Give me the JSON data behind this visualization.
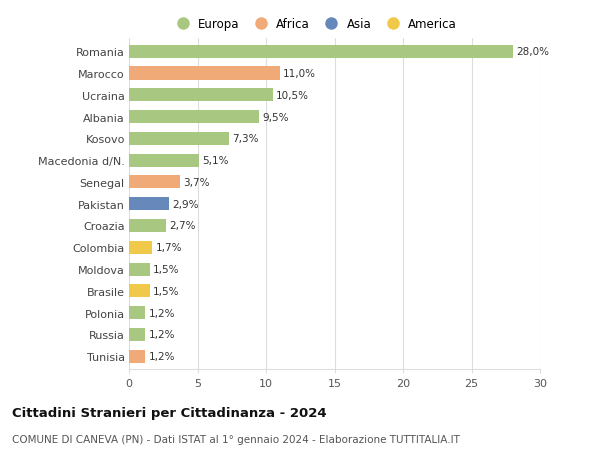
{
  "countries": [
    "Romania",
    "Marocco",
    "Ucraina",
    "Albania",
    "Kosovo",
    "Macedonia d/N.",
    "Senegal",
    "Pakistan",
    "Croazia",
    "Colombia",
    "Moldova",
    "Brasile",
    "Polonia",
    "Russia",
    "Tunisia"
  ],
  "values": [
    28.0,
    11.0,
    10.5,
    9.5,
    7.3,
    5.1,
    3.7,
    2.9,
    2.7,
    1.7,
    1.5,
    1.5,
    1.2,
    1.2,
    1.2
  ],
  "labels": [
    "28,0%",
    "11,0%",
    "10,5%",
    "9,5%",
    "7,3%",
    "5,1%",
    "3,7%",
    "2,9%",
    "2,7%",
    "1,7%",
    "1,5%",
    "1,5%",
    "1,2%",
    "1,2%",
    "1,2%"
  ],
  "continents": [
    "Europa",
    "Africa",
    "Europa",
    "Europa",
    "Europa",
    "Europa",
    "Africa",
    "Asia",
    "Europa",
    "America",
    "Europa",
    "America",
    "Europa",
    "Europa",
    "Africa"
  ],
  "colors": {
    "Europa": "#a8c882",
    "Africa": "#f0aa78",
    "Asia": "#6688bb",
    "America": "#f0c84a"
  },
  "legend_order": [
    "Europa",
    "Africa",
    "Asia",
    "America"
  ],
  "title": "Cittadini Stranieri per Cittadinanza - 2024",
  "subtitle": "COMUNE DI CANEVA (PN) - Dati ISTAT al 1° gennaio 2024 - Elaborazione TUTTITALIA.IT",
  "xlim": [
    0,
    30
  ],
  "xticks": [
    0,
    5,
    10,
    15,
    20,
    25,
    30
  ],
  "background_color": "#ffffff",
  "grid_color": "#dddddd"
}
